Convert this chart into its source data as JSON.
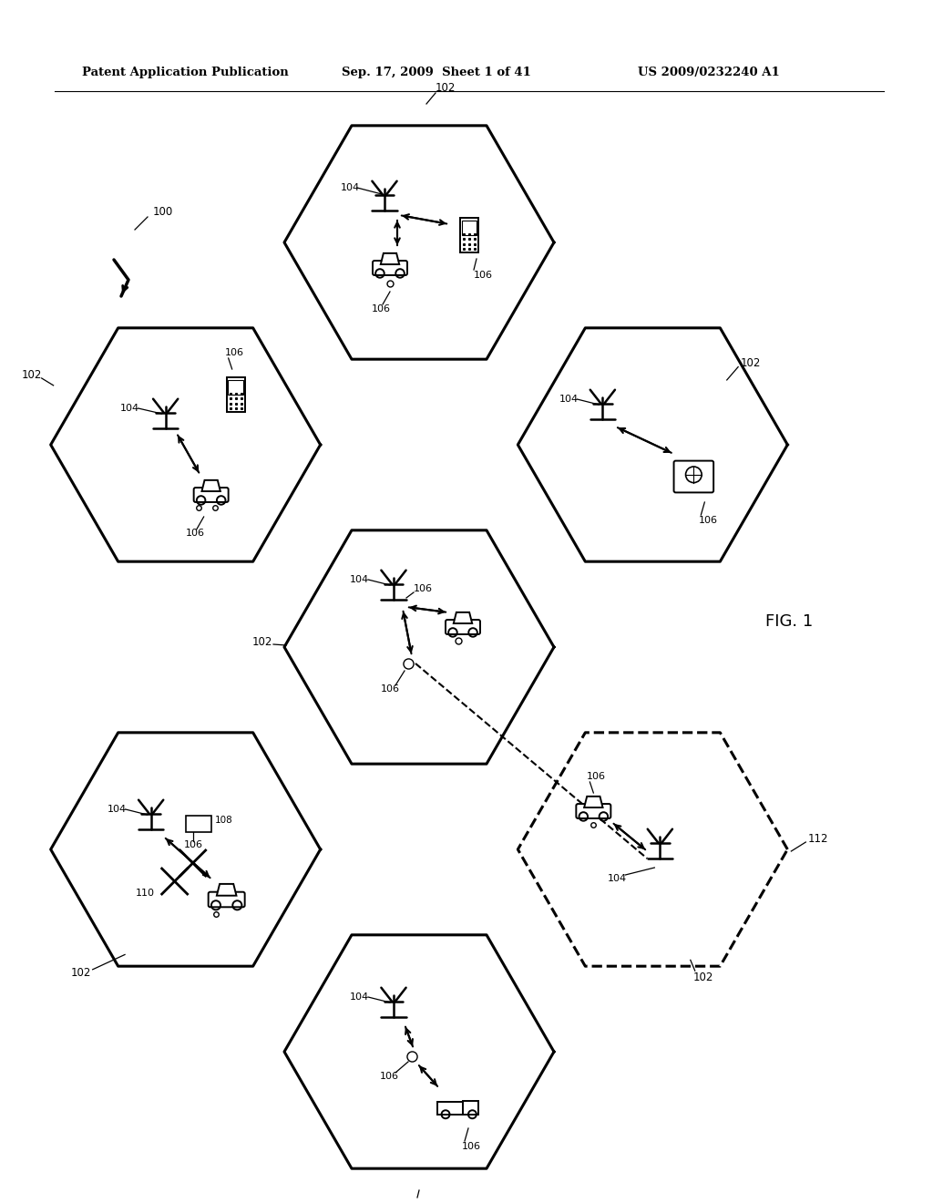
{
  "bg_color": "#ffffff",
  "line_color": "#000000",
  "header_text1": "Patent Application Publication",
  "header_text2": "Sep. 17, 2009  Sheet 1 of 41",
  "header_text3": "US 2009/0232240 A1",
  "fig_label": "FIG. 1",
  "hex_linewidth": 2.2,
  "fig_width": 10.24,
  "fig_height": 13.2,
  "dpi": 100
}
